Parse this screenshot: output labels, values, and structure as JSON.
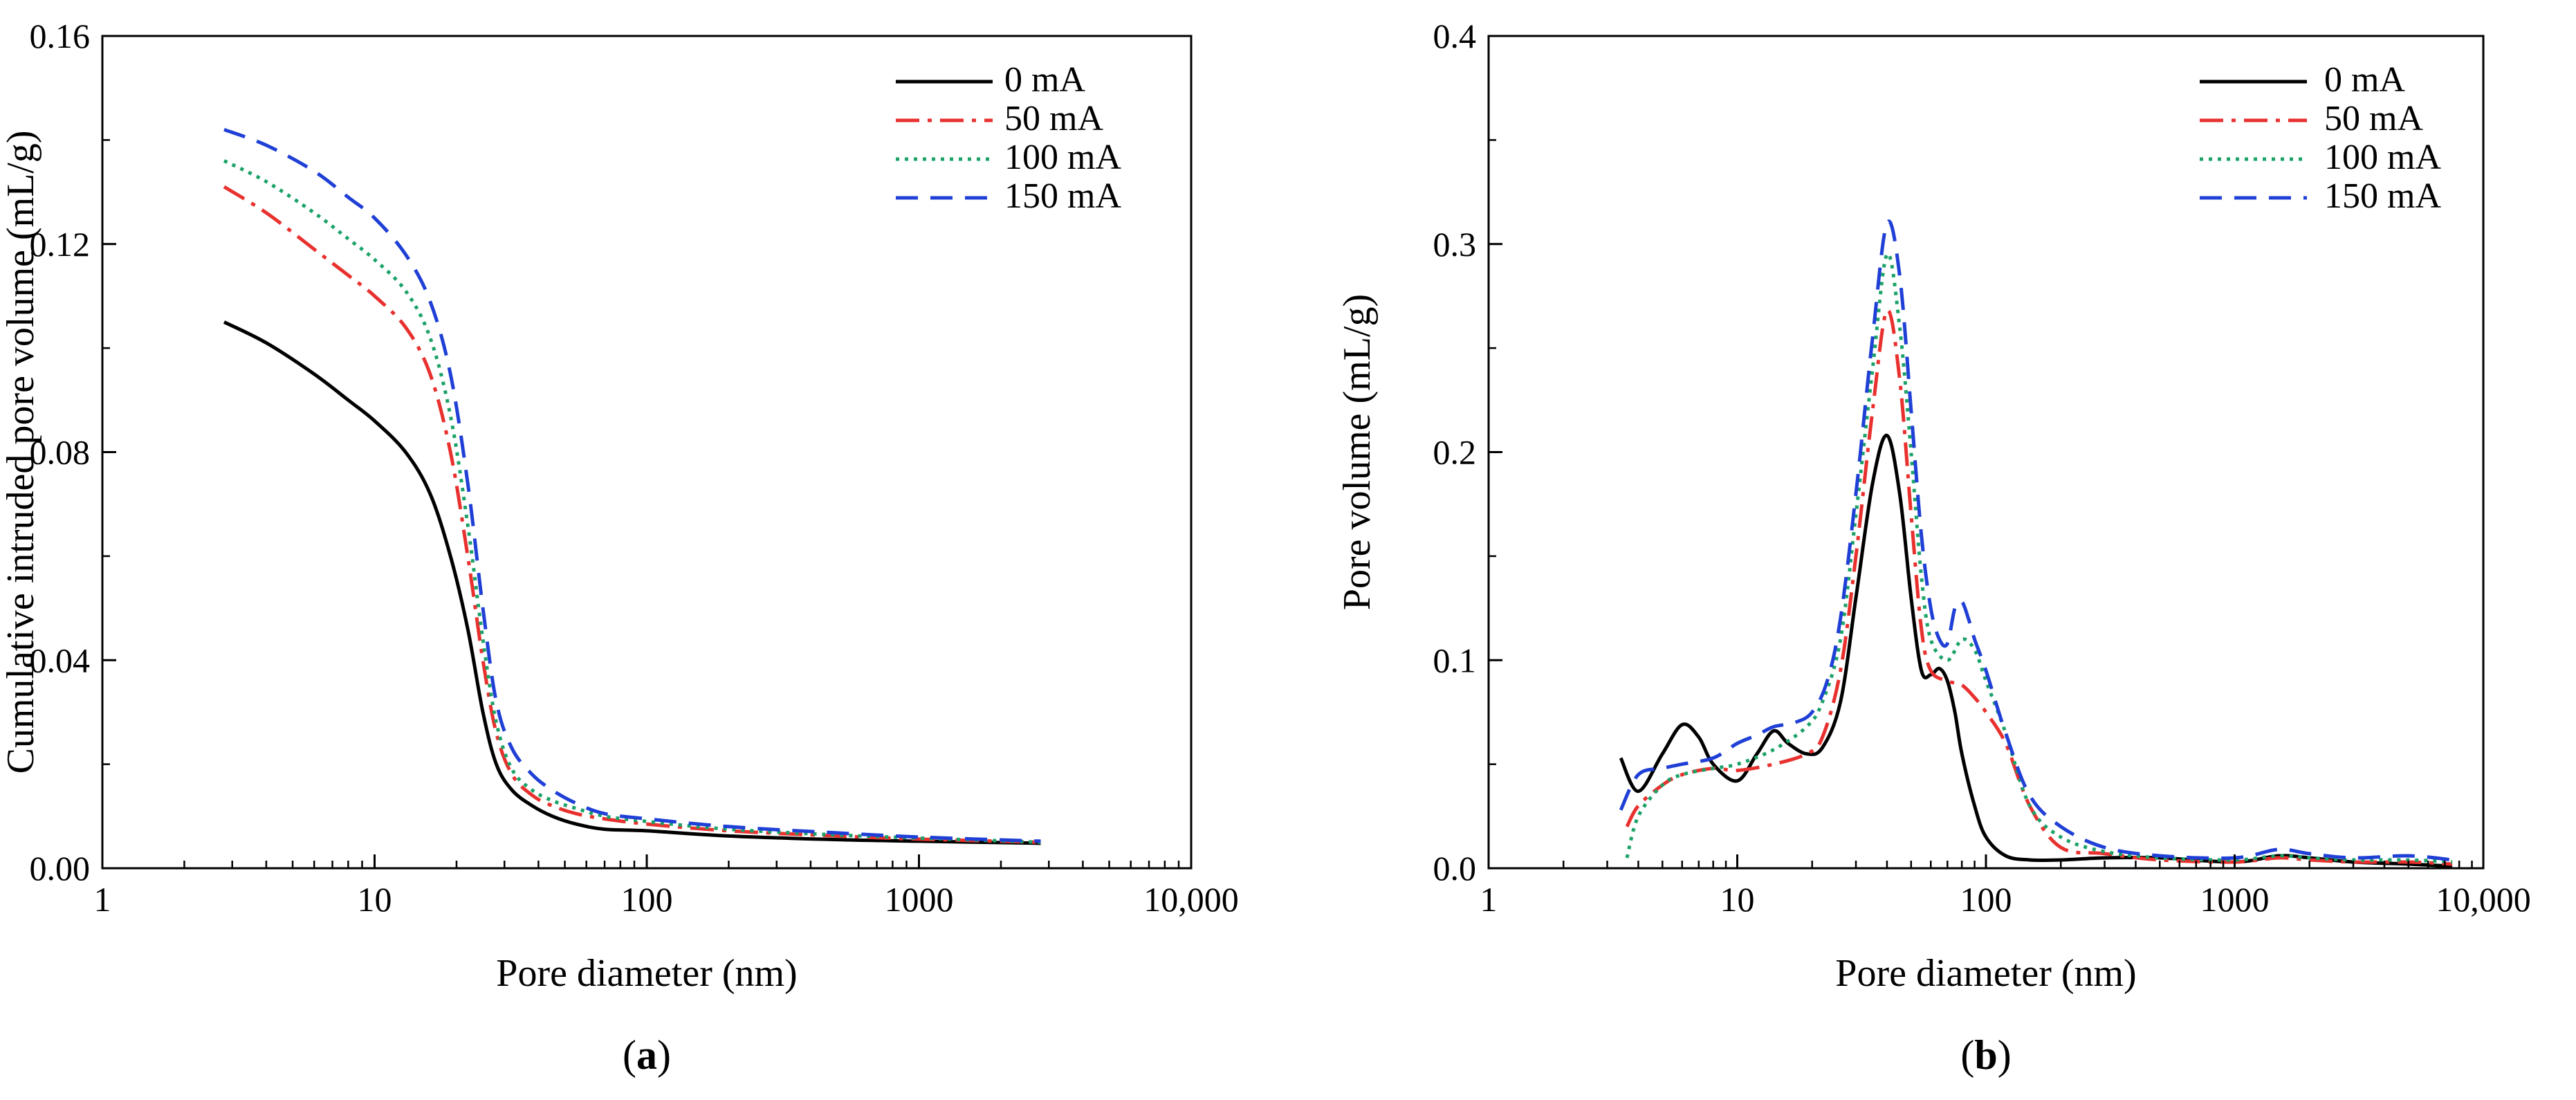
{
  "chart_data": [
    {
      "type": "line",
      "panel": "(a)",
      "panel_paren_open": "(",
      "panel_letter": "a",
      "panel_paren_close": ")",
      "xlabel": "Pore diameter (nm)",
      "ylabel": "Cumulative intruded pore volume (mL/g)",
      "xscale": "log",
      "xlim": [
        1,
        10000
      ],
      "ylim": [
        0,
        0.16
      ],
      "x_ticks": [
        1,
        10,
        100,
        1000,
        10000
      ],
      "x_tick_labels": [
        "1",
        "10",
        "100",
        "1000",
        "10,000"
      ],
      "y_ticks": [
        0,
        0.04,
        0.08,
        0.12,
        0.16
      ],
      "y_tick_labels": [
        "0.00",
        "0.04",
        "0.08",
        "0.12",
        "0.16"
      ],
      "legend_position": "top-right",
      "series": [
        {
          "name": "0 mA",
          "color": "#000000",
          "style": "solid",
          "x": [
            2.8,
            4,
            6,
            8,
            10,
            13,
            16,
            19,
            22,
            25,
            28,
            32,
            38,
            45,
            55,
            70,
            100,
            200,
            500,
            1000,
            2800
          ],
          "y": [
            0.105,
            0.101,
            0.095,
            0.09,
            0.086,
            0.08,
            0.072,
            0.06,
            0.046,
            0.03,
            0.02,
            0.015,
            0.012,
            0.01,
            0.0085,
            0.0075,
            0.0072,
            0.0062,
            0.0055,
            0.0052,
            0.0048
          ]
        },
        {
          "name": "50 mA",
          "color": "#e8312e",
          "style": "dashdot",
          "x": [
            2.8,
            4,
            6,
            8,
            10,
            13,
            16,
            19,
            22,
            25,
            28,
            32,
            38,
            45,
            55,
            70,
            100,
            200,
            500,
            1000,
            2800
          ],
          "y": [
            0.131,
            0.126,
            0.119,
            0.114,
            0.11,
            0.104,
            0.095,
            0.08,
            0.06,
            0.04,
            0.026,
            0.018,
            0.014,
            0.012,
            0.0105,
            0.0095,
            0.0085,
            0.0072,
            0.0062,
            0.0056,
            0.005
          ]
        },
        {
          "name": "100 mA",
          "color": "#1aa268",
          "style": "dotted",
          "x": [
            2.8,
            4,
            6,
            8,
            10,
            13,
            16,
            19,
            22,
            25,
            28,
            32,
            38,
            45,
            55,
            70,
            100,
            200,
            500,
            1000,
            2800
          ],
          "y": [
            0.136,
            0.132,
            0.126,
            0.121,
            0.117,
            0.111,
            0.102,
            0.087,
            0.066,
            0.044,
            0.028,
            0.019,
            0.015,
            0.013,
            0.0115,
            0.01,
            0.009,
            0.0075,
            0.0064,
            0.0058,
            0.005
          ]
        },
        {
          "name": "150 mA",
          "color": "#1f3fd6",
          "style": "dashed",
          "x": [
            2.8,
            4,
            6,
            8,
            10,
            13,
            16,
            19,
            22,
            25,
            28,
            32,
            38,
            45,
            55,
            70,
            100,
            200,
            500,
            1000,
            2800
          ],
          "y": [
            0.142,
            0.139,
            0.134,
            0.129,
            0.125,
            0.118,
            0.109,
            0.095,
            0.074,
            0.05,
            0.032,
            0.023,
            0.018,
            0.015,
            0.0125,
            0.0105,
            0.0095,
            0.008,
            0.0068,
            0.006,
            0.0052
          ]
        }
      ]
    },
    {
      "type": "line",
      "panel": "(b)",
      "panel_paren_open": "(",
      "panel_letter": "b",
      "panel_paren_close": ")",
      "xlabel": "Pore diameter (nm)",
      "ylabel": "Pore volume (mL/g)",
      "xscale": "log",
      "xlim": [
        1,
        10000
      ],
      "ylim": [
        0,
        0.4
      ],
      "x_ticks": [
        1,
        10,
        100,
        1000,
        10000
      ],
      "x_tick_labels": [
        "1",
        "10",
        "100",
        "1000",
        "10,000"
      ],
      "y_ticks": [
        0,
        0.1,
        0.2,
        0.3,
        0.4
      ],
      "y_tick_labels": [
        "0.0",
        "0.1",
        "0.2",
        "0.3",
        "0.4"
      ],
      "legend_position": "top-right",
      "series": [
        {
          "name": "0 mA",
          "color": "#000000",
          "style": "solid",
          "x": [
            3.4,
            4,
            5,
            6,
            7,
            8,
            10,
            12,
            14,
            16,
            19,
            22,
            26,
            30,
            35,
            40,
            45,
            50,
            55,
            60,
            65,
            70,
            75,
            80,
            90,
            100,
            120,
            150,
            200,
            300,
            500,
            1000,
            1500,
            2000,
            3000,
            5000,
            7500
          ],
          "y": [
            0.053,
            0.037,
            0.055,
            0.069,
            0.063,
            0.05,
            0.042,
            0.055,
            0.066,
            0.06,
            0.055,
            0.058,
            0.08,
            0.13,
            0.185,
            0.208,
            0.18,
            0.13,
            0.095,
            0.093,
            0.096,
            0.09,
            0.075,
            0.055,
            0.03,
            0.015,
            0.006,
            0.004,
            0.004,
            0.005,
            0.005,
            0.003,
            0.006,
            0.005,
            0.003,
            0.002,
            0.001
          ]
        },
        {
          "name": "50 mA",
          "color": "#e8312e",
          "style": "dashdot",
          "x": [
            3.6,
            4,
            5,
            6,
            8,
            10,
            14,
            19,
            22,
            26,
            30,
            35,
            40,
            45,
            50,
            55,
            60,
            70,
            80,
            90,
            100,
            120,
            150,
            200,
            300,
            500,
            1000,
            1500,
            2000,
            3000,
            5000,
            7500
          ],
          "y": [
            0.02,
            0.03,
            0.04,
            0.045,
            0.048,
            0.047,
            0.05,
            0.055,
            0.063,
            0.095,
            0.15,
            0.22,
            0.268,
            0.235,
            0.17,
            0.115,
            0.095,
            0.09,
            0.088,
            0.082,
            0.075,
            0.06,
            0.03,
            0.01,
            0.007,
            0.004,
            0.003,
            0.005,
            0.004,
            0.003,
            0.003,
            0.002
          ]
        },
        {
          "name": "100 mA",
          "color": "#1aa268",
          "style": "dotted",
          "x": [
            3.6,
            4,
            5,
            6,
            8,
            10,
            14,
            19,
            22,
            26,
            30,
            35,
            40,
            45,
            50,
            55,
            60,
            70,
            80,
            90,
            100,
            120,
            150,
            200,
            300,
            500,
            1000,
            1500,
            2000,
            3000,
            5000,
            7500
          ],
          "y": [
            0.005,
            0.025,
            0.04,
            0.045,
            0.048,
            0.05,
            0.057,
            0.068,
            0.08,
            0.11,
            0.17,
            0.24,
            0.295,
            0.26,
            0.2,
            0.14,
            0.11,
            0.1,
            0.11,
            0.105,
            0.09,
            0.065,
            0.03,
            0.015,
            0.008,
            0.005,
            0.004,
            0.006,
            0.005,
            0.004,
            0.004,
            0.003
          ]
        },
        {
          "name": "150 mA",
          "color": "#1f3fd6",
          "style": "dashed",
          "x": [
            3.4,
            4,
            5,
            6,
            8,
            10,
            12,
            14,
            17,
            20,
            23,
            26,
            30,
            35,
            40,
            45,
            50,
            55,
            60,
            65,
            70,
            75,
            80,
            85,
            90,
            100,
            120,
            150,
            200,
            300,
            500,
            1000,
            1500,
            2000,
            3000,
            5000,
            7500
          ],
          "y": [
            0.028,
            0.045,
            0.048,
            0.05,
            0.053,
            0.06,
            0.064,
            0.068,
            0.07,
            0.075,
            0.09,
            0.12,
            0.18,
            0.255,
            0.31,
            0.285,
            0.22,
            0.16,
            0.125,
            0.11,
            0.108,
            0.125,
            0.128,
            0.12,
            0.11,
            0.095,
            0.065,
            0.035,
            0.02,
            0.01,
            0.006,
            0.005,
            0.009,
            0.007,
            0.005,
            0.006,
            0.004
          ]
        }
      ]
    }
  ]
}
